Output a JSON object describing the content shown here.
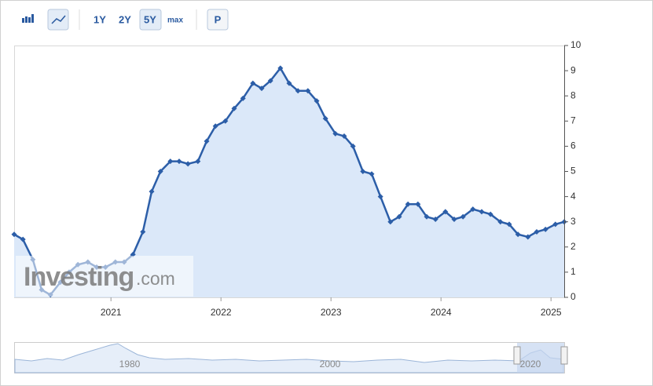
{
  "toolbar": {
    "buttons": [
      "1Y",
      "2Y",
      "5Y",
      "max",
      "P"
    ]
  },
  "watermark": {
    "brand": "Investing",
    "suffix": ".com"
  },
  "navigator": {
    "labels": [
      "1980",
      "2000",
      "2020"
    ]
  },
  "chart_data": {
    "type": "area",
    "color": "#2c5ea8",
    "fill": "#dbe8f9",
    "grid": false,
    "y_axis_side": "right",
    "x": [
      2020.12,
      2020.2,
      2020.29,
      2020.37,
      2020.45,
      2020.54,
      2020.62,
      2020.7,
      2020.79,
      2020.87,
      2020.95,
      2021.04,
      2021.12,
      2021.2,
      2021.29,
      2021.37,
      2021.45,
      2021.54,
      2021.62,
      2021.7,
      2021.79,
      2021.87,
      2021.95,
      2022.04,
      2022.12,
      2022.2,
      2022.29,
      2022.37,
      2022.45,
      2022.54,
      2022.62,
      2022.7,
      2022.79,
      2022.87,
      2022.95,
      2023.04,
      2023.12,
      2023.2,
      2023.29,
      2023.37,
      2023.45,
      2023.54,
      2023.62,
      2023.7,
      2023.79,
      2023.87,
      2023.95,
      2024.04,
      2024.12,
      2024.2,
      2024.29,
      2024.37,
      2024.45,
      2024.54,
      2024.62,
      2024.7,
      2024.79,
      2024.87,
      2024.95,
      2025.04,
      2025.12
    ],
    "values": [
      2.5,
      2.3,
      1.5,
      0.3,
      0.1,
      0.6,
      1.0,
      1.3,
      1.4,
      1.2,
      1.2,
      1.4,
      1.4,
      1.7,
      2.6,
      4.2,
      5.0,
      5.4,
      5.4,
      5.3,
      5.4,
      6.2,
      6.8,
      7.0,
      7.5,
      7.9,
      8.5,
      8.3,
      8.6,
      9.1,
      8.5,
      8.2,
      8.2,
      7.8,
      7.1,
      6.5,
      6.4,
      6.0,
      5.0,
      4.9,
      4.0,
      3.0,
      3.2,
      3.7,
      3.7,
      3.2,
      3.1,
      3.4,
      3.1,
      3.2,
      3.5,
      3.4,
      3.3,
      3.0,
      2.9,
      2.5,
      2.4,
      2.6,
      2.7,
      2.9,
      3.0
    ],
    "xlim": [
      2020.12,
      2025.12
    ],
    "xticks": [
      2021,
      2022,
      2023,
      2024,
      2025
    ],
    "ylim": [
      0,
      10
    ],
    "yticks": [
      0,
      1,
      2,
      3,
      4,
      5,
      6,
      7,
      8,
      9,
      10
    ]
  }
}
